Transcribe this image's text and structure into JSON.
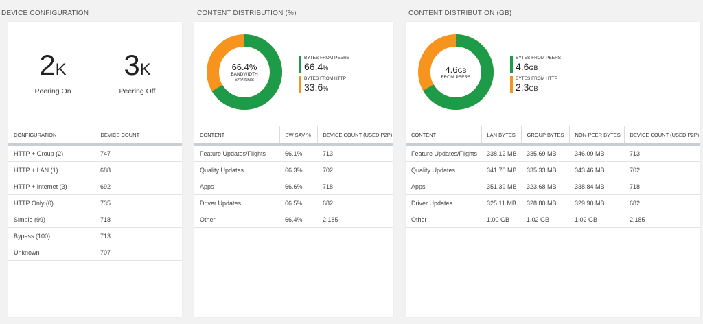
{
  "colors": {
    "green": "#1e9b48",
    "orange": "#f7941d"
  },
  "device_config": {
    "title": "DEVICE CONFIGURATION",
    "stats": [
      {
        "value": "2",
        "unit": "K",
        "label": "Peering On"
      },
      {
        "value": "3",
        "unit": "K",
        "label": "Peering Off"
      }
    ],
    "table": {
      "headers": [
        "CONFIGURATION",
        "DEVICE COUNT"
      ],
      "rows": [
        [
          "HTTP + Group (2)",
          "747"
        ],
        [
          "HTTP + LAN (1)",
          "688"
        ],
        [
          "HTTP + Internet (3)",
          "692"
        ],
        [
          "HTTP Only (0)",
          "735"
        ],
        [
          "Simple (99)",
          "718"
        ],
        [
          "Bypass (100)",
          "713"
        ],
        [
          "Unknown",
          "707"
        ]
      ]
    }
  },
  "content_pct": {
    "title": "CONTENT DISTRIBUTION (%)",
    "donut": {
      "center_value": "66.4%",
      "center_label": "BANDWIDTH SAVINGS",
      "green_fraction": 0.664
    },
    "legend": [
      {
        "label": "BYTES FROM PEERS",
        "value": "66.4",
        "unit": "%",
        "color": "green"
      },
      {
        "label": "BYTES FROM HTTP",
        "value": "33.6",
        "unit": "%",
        "color": "orange"
      }
    ],
    "table": {
      "headers": [
        "CONTENT",
        "BW SAV %",
        "DEVICE COUNT (USED P2P)"
      ],
      "rows": [
        [
          "Feature Updates/Flights",
          "66.1%",
          "713"
        ],
        [
          "Quality Updates",
          "66.3%",
          "702"
        ],
        [
          "Apps",
          "66.6%",
          "718"
        ],
        [
          "Driver Updates",
          "66.5%",
          "682"
        ],
        [
          "Other",
          "66.4%",
          "2,185"
        ]
      ]
    }
  },
  "content_gb": {
    "title": "CONTENT DISTRIBUTION (GB)",
    "donut": {
      "center_value": "4.6",
      "center_unit": "GB",
      "center_label": "FROM PEERS",
      "green_fraction": 0.667
    },
    "legend": [
      {
        "label": "BYTES FROM PEERS",
        "value": "4.6",
        "unit": "GB",
        "color": "green"
      },
      {
        "label": "BYTES FROM HTTP",
        "value": "2.3",
        "unit": "GB",
        "color": "orange"
      }
    ],
    "table": {
      "headers": [
        "CONTENT",
        "LAN BYTES",
        "GROUP BYTES",
        "NON-PEER BYTES",
        "DEVICE COUNT (USED P2P)"
      ],
      "rows": [
        [
          "Feature Updates/Flights",
          "338.12 MB",
          "335.69 MB",
          "346.09 MB",
          "713"
        ],
        [
          "Quality Updates",
          "341.70 MB",
          "335.33 MB",
          "343.46 MB",
          "702"
        ],
        [
          "Apps",
          "351.39 MB",
          "323.68 MB",
          "338.84 MB",
          "718"
        ],
        [
          "Driver Updates",
          "325.11 MB",
          "328.80 MB",
          "329.90 MB",
          "682"
        ],
        [
          "Other",
          "1.00 GB",
          "1.02 GB",
          "1.02 GB",
          "2,185"
        ]
      ]
    }
  }
}
